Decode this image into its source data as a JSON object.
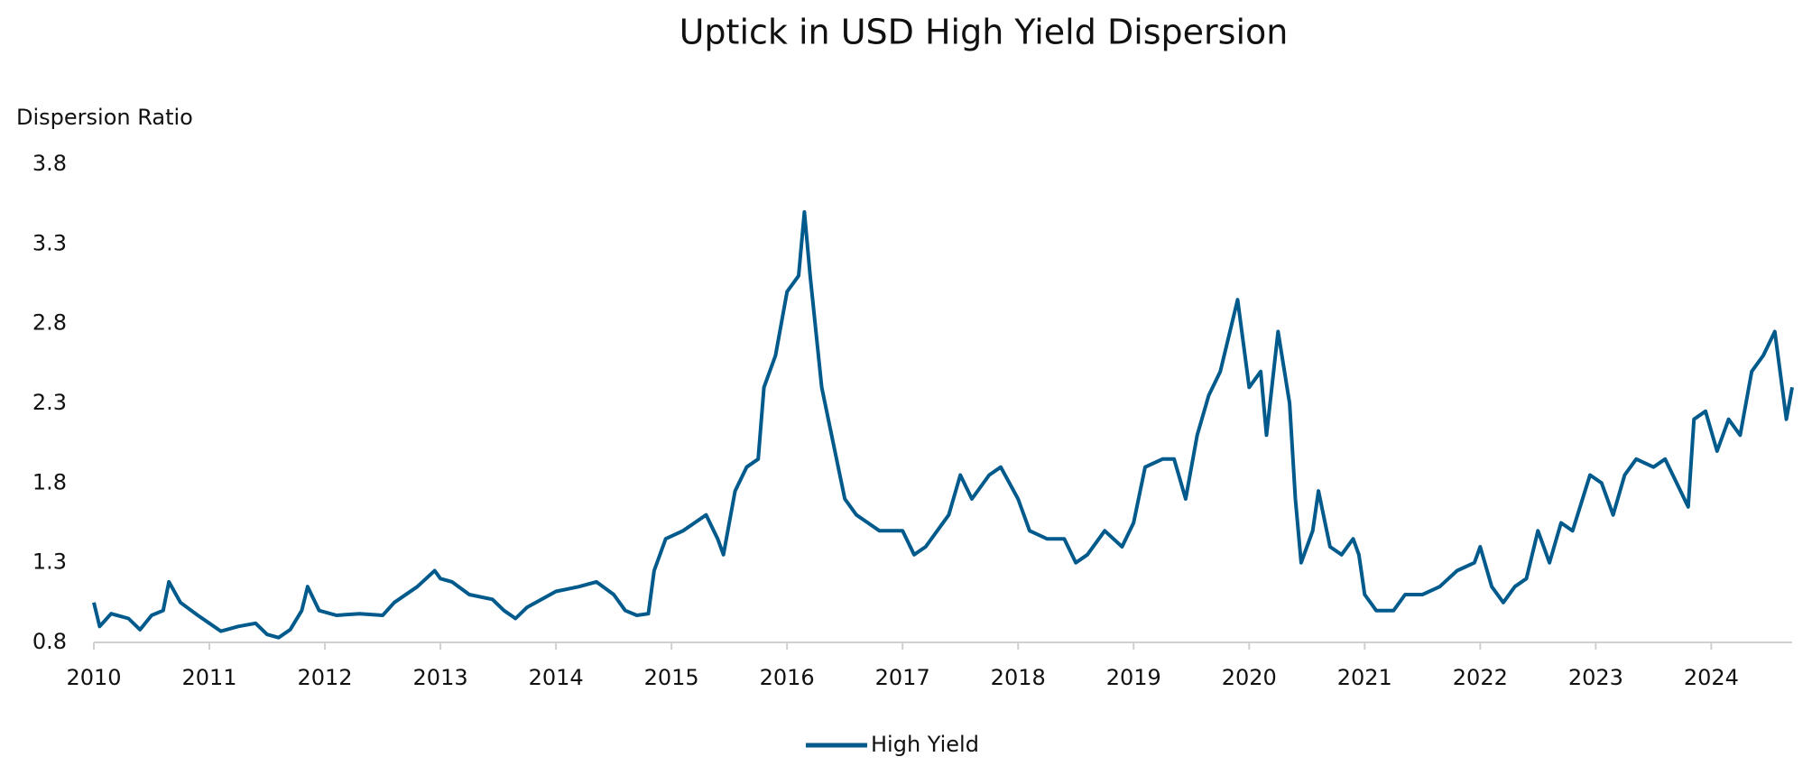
{
  "chart_data": {
    "type": "line",
    "title": "Uptick in USD High Yield Dispersion",
    "y_label": "Dispersion Ratio",
    "x": [
      2010.0,
      2010.05,
      2010.15,
      2010.3,
      2010.4,
      2010.5,
      2010.6,
      2010.65,
      2010.75,
      2010.9,
      2011.0,
      2011.1,
      2011.25,
      2011.4,
      2011.5,
      2011.6,
      2011.7,
      2011.8,
      2011.85,
      2011.95,
      2012.1,
      2012.3,
      2012.5,
      2012.6,
      2012.8,
      2012.95,
      2013.0,
      2013.1,
      2013.25,
      2013.45,
      2013.55,
      2013.65,
      2013.75,
      2014.0,
      2014.2,
      2014.35,
      2014.5,
      2014.6,
      2014.7,
      2014.8,
      2014.85,
      2014.95,
      2015.1,
      2015.2,
      2015.3,
      2015.4,
      2015.45,
      2015.55,
      2015.65,
      2015.75,
      2015.8,
      2015.9,
      2016.0,
      2016.1,
      2016.15,
      2016.2,
      2016.3,
      2016.4,
      2016.5,
      2016.6,
      2016.7,
      2016.8,
      2016.9,
      2017.0,
      2017.1,
      2017.2,
      2017.3,
      2017.4,
      2017.5,
      2017.6,
      2017.75,
      2017.85,
      2018.0,
      2018.1,
      2018.25,
      2018.4,
      2018.5,
      2018.6,
      2018.75,
      2018.9,
      2019.0,
      2019.1,
      2019.25,
      2019.35,
      2019.45,
      2019.55,
      2019.65,
      2019.75,
      2019.85,
      2019.9,
      2020.0,
      2020.1,
      2020.15,
      2020.25,
      2020.35,
      2020.4,
      2020.45,
      2020.55,
      2020.6,
      2020.7,
      2020.8,
      2020.9,
      2020.95,
      2021.0,
      2021.1,
      2021.25,
      2021.35,
      2021.5,
      2021.65,
      2021.8,
      2021.95,
      2022.0,
      2022.1,
      2022.2,
      2022.3,
      2022.4,
      2022.5,
      2022.6,
      2022.7,
      2022.8,
      2022.95,
      2023.05,
      2023.15,
      2023.25,
      2023.35,
      2023.5,
      2023.6,
      2023.7,
      2023.8,
      2023.85,
      2023.95,
      2024.05,
      2024.15,
      2024.25,
      2024.35,
      2024.45,
      2024.55,
      2024.65,
      2024.7
    ],
    "series": [
      {
        "name": "High Yield",
        "color": "#005a8c",
        "values": [
          1.05,
          0.9,
          0.98,
          0.95,
          0.88,
          0.97,
          1.0,
          1.18,
          1.05,
          0.97,
          0.92,
          0.87,
          0.9,
          0.92,
          0.85,
          0.83,
          0.88,
          1.0,
          1.15,
          1.0,
          0.97,
          0.98,
          0.97,
          1.05,
          1.15,
          1.25,
          1.2,
          1.18,
          1.1,
          1.07,
          1.0,
          0.95,
          1.02,
          1.12,
          1.15,
          1.18,
          1.1,
          1.0,
          0.97,
          0.98,
          1.25,
          1.45,
          1.5,
          1.55,
          1.6,
          1.45,
          1.35,
          1.75,
          1.9,
          1.95,
          2.4,
          2.6,
          3.0,
          3.1,
          3.5,
          3.1,
          2.4,
          2.05,
          1.7,
          1.6,
          1.55,
          1.5,
          1.5,
          1.5,
          1.35,
          1.4,
          1.5,
          1.6,
          1.85,
          1.7,
          1.85,
          1.9,
          1.7,
          1.5,
          1.45,
          1.45,
          1.3,
          1.35,
          1.5,
          1.4,
          1.55,
          1.9,
          1.95,
          1.95,
          1.7,
          2.1,
          2.35,
          2.5,
          2.8,
          2.95,
          2.4,
          2.5,
          2.1,
          2.75,
          2.3,
          1.7,
          1.3,
          1.5,
          1.75,
          1.4,
          1.35,
          1.45,
          1.35,
          1.1,
          1.0,
          1.0,
          1.1,
          1.1,
          1.15,
          1.25,
          1.3,
          1.4,
          1.15,
          1.05,
          1.15,
          1.2,
          1.5,
          1.3,
          1.55,
          1.5,
          1.85,
          1.8,
          1.6,
          1.85,
          1.95,
          1.9,
          1.95,
          1.8,
          1.65,
          2.2,
          2.25,
          2.0,
          2.2,
          2.1,
          2.5,
          2.6,
          2.75,
          2.2,
          2.4
        ]
      }
    ],
    "xlim": [
      2010,
      2024.7
    ],
    "xticks": [
      2010,
      2011,
      2012,
      2013,
      2014,
      2015,
      2016,
      2017,
      2018,
      2019,
      2020,
      2021,
      2022,
      2023,
      2024
    ],
    "ylim": [
      0.8,
      3.8
    ],
    "yticks": [
      0.8,
      1.3,
      1.8,
      2.3,
      2.8,
      3.3,
      3.8
    ],
    "grid": false,
    "legend": "bottom"
  }
}
